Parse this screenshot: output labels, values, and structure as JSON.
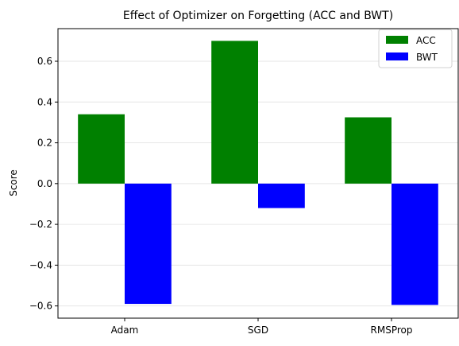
{
  "chart_data": {
    "type": "bar",
    "title": "Effect of Optimizer on Forgetting (ACC and BWT)",
    "xlabel": "",
    "ylabel": "Score",
    "categories": [
      "Adam",
      "SGD",
      "RMSProp"
    ],
    "series": [
      {
        "name": "ACC",
        "color": "#008000",
        "values": [
          0.34,
          0.7,
          0.325
        ]
      },
      {
        "name": "BWT",
        "color": "#0000ff",
        "values": [
          -0.59,
          -0.12,
          -0.595
        ]
      }
    ],
    "ylim": [
      -0.66,
      0.76
    ],
    "yticks": [
      -0.6,
      -0.4,
      -0.2,
      0.0,
      0.2,
      0.4,
      0.6
    ],
    "ytick_labels": [
      "−0.6",
      "−0.4",
      "−0.2",
      "0.0",
      "0.2",
      "0.4",
      "0.6"
    ],
    "grid": "y",
    "legend_position": "top-right"
  }
}
